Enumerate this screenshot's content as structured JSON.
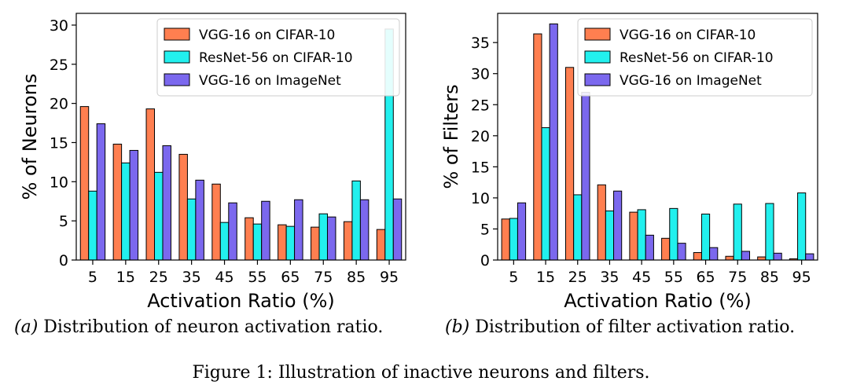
{
  "chart_data": [
    {
      "type": "bar",
      "xlabel": "Activation Ratio (%)",
      "ylabel": "% of Neurons",
      "ylim": [
        0,
        31.5
      ],
      "yticks": [
        0,
        5,
        10,
        15,
        20,
        25,
        30
      ],
      "categories": [
        "5",
        "15",
        "25",
        "35",
        "45",
        "55",
        "65",
        "75",
        "85",
        "95"
      ],
      "legend_position": "top-right",
      "grid": false,
      "series": [
        {
          "name": "VGG-16 on CIFAR-10",
          "color": "#ff7f50",
          "values": [
            19.6,
            14.8,
            19.3,
            13.5,
            9.7,
            5.4,
            4.5,
            4.2,
            4.9,
            3.9
          ]
        },
        {
          "name": "ResNet-56 on CIFAR-10",
          "color": "#22f0ee",
          "values": [
            8.8,
            12.4,
            11.2,
            7.8,
            4.8,
            4.6,
            4.3,
            5.9,
            10.1,
            29.5
          ]
        },
        {
          "name": "VGG-16 on ImageNet",
          "color": "#7b68ee",
          "values": [
            17.4,
            14.0,
            14.6,
            10.2,
            7.3,
            7.5,
            7.7,
            5.5,
            7.7,
            7.8
          ]
        }
      ]
    },
    {
      "type": "bar",
      "xlabel": "Activation Ratio (%)",
      "ylabel": "% of Filters",
      "ylim": [
        0,
        39.7
      ],
      "yticks": [
        0,
        5,
        10,
        15,
        20,
        25,
        30,
        35
      ],
      "categories": [
        "5",
        "15",
        "25",
        "35",
        "45",
        "55",
        "65",
        "75",
        "85",
        "95"
      ],
      "legend_position": "top-right",
      "grid": false,
      "series": [
        {
          "name": "VGG-16 on CIFAR-10",
          "color": "#ff7f50",
          "values": [
            6.6,
            36.4,
            31.0,
            12.1,
            7.7,
            3.5,
            1.2,
            0.6,
            0.5,
            0.2
          ]
        },
        {
          "name": "ResNet-56 on CIFAR-10",
          "color": "#22f0ee",
          "values": [
            6.7,
            21.3,
            10.5,
            7.9,
            8.1,
            8.3,
            7.4,
            9.0,
            9.1,
            10.8
          ]
        },
        {
          "name": "VGG-16 on ImageNet",
          "color": "#7b68ee",
          "values": [
            9.2,
            38.0,
            27.0,
            11.1,
            4.0,
            2.7,
            2.0,
            1.4,
            1.1,
            1.0
          ]
        }
      ]
    }
  ],
  "captions": {
    "a_label": "(a)",
    "a_text": "Distribution of neuron activation ratio.",
    "b_label": "(b)",
    "b_text": "Distribution of filter activation ratio.",
    "figure": "Figure 1: Illustration of inactive neurons and filters."
  }
}
